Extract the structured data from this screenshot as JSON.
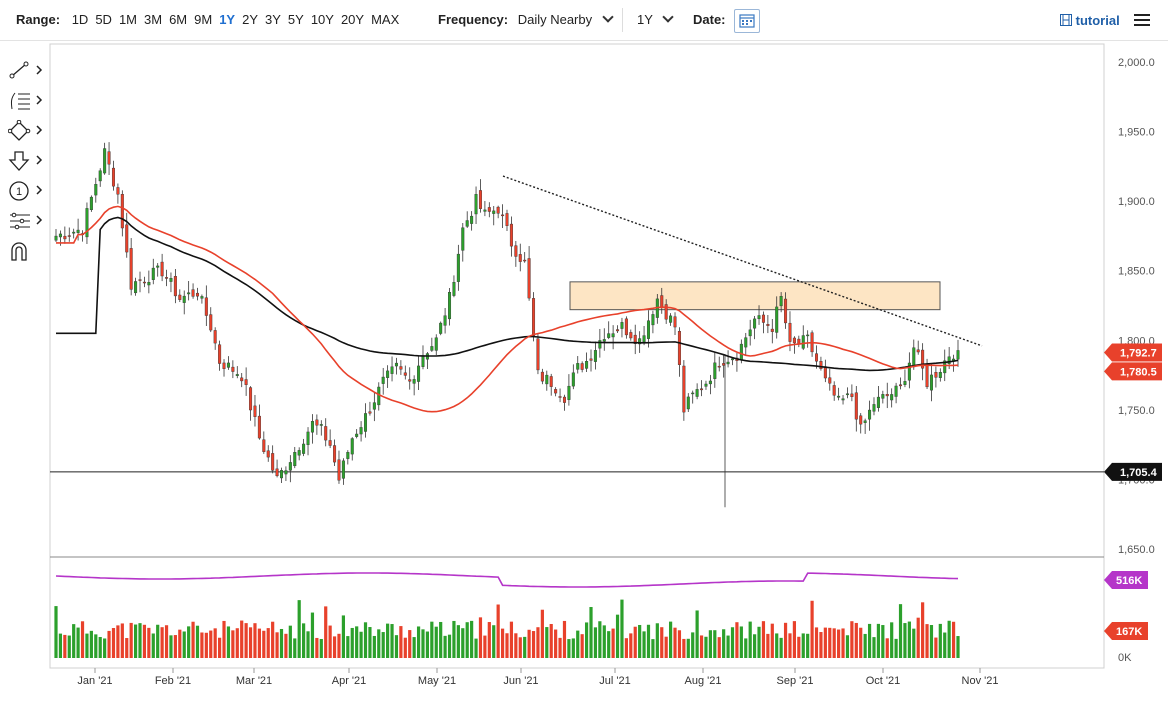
{
  "toolbar": {
    "range_label": "Range:",
    "ranges": [
      "1D",
      "5D",
      "1M",
      "3M",
      "6M",
      "9M",
      "1Y",
      "2Y",
      "3Y",
      "5Y",
      "10Y",
      "20Y",
      "MAX"
    ],
    "active_range": "1Y",
    "frequency_label": "Frequency:",
    "frequency_value": "Daily Nearby",
    "period_value": "1Y",
    "date_label": "Date:",
    "tutorial_label": "tutorial"
  },
  "sidebar": {
    "tools": [
      "line-tool-icon",
      "fib-tool-icon",
      "shape-tool-icon",
      "arrow-tool-icon",
      "number-tool-icon",
      "measure-tool-icon",
      "magnet-icon"
    ]
  },
  "colors": {
    "up": "#2ca02c",
    "down": "#e8412b",
    "sma_fast": "#e8412b",
    "sma_slow": "#111111",
    "rectangle_fill": "#fde5c4",
    "rectangle_stroke": "#555555",
    "volume_avg": "#b535c9",
    "label_red": "#e8412b",
    "label_black": "#111111",
    "label_purple": "#b535c9"
  },
  "chart_data": {
    "type": "candlestick",
    "price_axis": {
      "min": 1650,
      "max": 2000,
      "ticks": [
        2000,
        1950,
        1900,
        1850,
        1800,
        1750,
        1700,
        1650
      ],
      "tick_labels": [
        "2,000.0",
        "1,950.0",
        "1,900.0",
        "1,850.0",
        "1,800.0",
        "1,750.0",
        "1,700.0",
        "1,650.0"
      ]
    },
    "x_labels": [
      "Jan '21",
      "Feb '21",
      "Mar '21",
      "Apr '21",
      "May '21",
      "Jun '21",
      "Jul '21",
      "Aug '21",
      "Sep '21",
      "Oct '21",
      "Nov '21"
    ],
    "price_labels": [
      {
        "value": 1792.7,
        "text": "1,792.7",
        "style": "red"
      },
      {
        "value": 1780.5,
        "text": "1,780.5",
        "style": "red"
      },
      {
        "value": 1705.4,
        "text": "1,705.4",
        "style": "black"
      }
    ],
    "horizontal_line": 1705.4,
    "resistance_box": {
      "from": "Jun '21",
      "to": "Oct '21",
      "top": 1842,
      "bottom": 1822
    },
    "trendline": {
      "start_month": 4.7,
      "start_value": 1918,
      "end_month": 10.0,
      "end_value": 1796
    },
    "approx_close_path": [
      [
        0.0,
        1875
      ],
      [
        0.3,
        1880
      ],
      [
        0.55,
        1935
      ],
      [
        0.7,
        1905
      ],
      [
        0.85,
        1840
      ],
      [
        1.0,
        1845
      ],
      [
        1.2,
        1850
      ],
      [
        1.4,
        1830
      ],
      [
        1.6,
        1835
      ],
      [
        1.75,
        1810
      ],
      [
        1.85,
        1785
      ],
      [
        2.1,
        1775
      ],
      [
        2.3,
        1730
      ],
      [
        2.5,
        1700
      ],
      [
        2.7,
        1720
      ],
      [
        2.9,
        1740
      ],
      [
        3.0,
        1735
      ],
      [
        3.1,
        1725
      ],
      [
        3.2,
        1700
      ],
      [
        3.35,
        1730
      ],
      [
        3.5,
        1745
      ],
      [
        3.7,
        1770
      ],
      [
        3.85,
        1780
      ],
      [
        4.0,
        1770
      ],
      [
        4.15,
        1790
      ],
      [
        4.3,
        1800
      ],
      [
        4.45,
        1830
      ],
      [
        4.6,
        1880
      ],
      [
        4.75,
        1900
      ],
      [
        4.85,
        1890
      ],
      [
        5.0,
        1895
      ],
      [
        5.15,
        1870
      ],
      [
        5.3,
        1855
      ],
      [
        5.45,
        1775
      ],
      [
        5.6,
        1770
      ],
      [
        5.75,
        1760
      ],
      [
        5.9,
        1780
      ],
      [
        6.0,
        1785
      ],
      [
        6.2,
        1805
      ],
      [
        6.4,
        1810
      ],
      [
        6.6,
        1800
      ],
      [
        6.8,
        1830
      ],
      [
        6.95,
        1815
      ],
      [
        7.0,
        1810
      ],
      [
        7.1,
        1750
      ],
      [
        7.2,
        1760
      ],
      [
        7.35,
        1770
      ],
      [
        7.5,
        1785
      ],
      [
        7.7,
        1790
      ],
      [
        7.9,
        1815
      ],
      [
        8.1,
        1810
      ],
      [
        8.2,
        1830
      ],
      [
        8.3,
        1795
      ],
      [
        8.5,
        1800
      ],
      [
        8.7,
        1770
      ],
      [
        8.85,
        1755
      ],
      [
        9.0,
        1760
      ],
      [
        9.1,
        1735
      ],
      [
        9.25,
        1755
      ],
      [
        9.4,
        1760
      ],
      [
        9.55,
        1765
      ],
      [
        9.7,
        1795
      ],
      [
        9.85,
        1770
      ],
      [
        10.0,
        1780
      ],
      [
        10.1,
        1790
      ],
      [
        10.2,
        1792.7
      ]
    ],
    "volume": {
      "axis_labels": [
        "0K"
      ],
      "volume_labels": [
        {
          "value": 516,
          "text": "516K",
          "style": "purple"
        },
        {
          "value": 167,
          "text": "167K",
          "style": "red"
        }
      ]
    }
  }
}
